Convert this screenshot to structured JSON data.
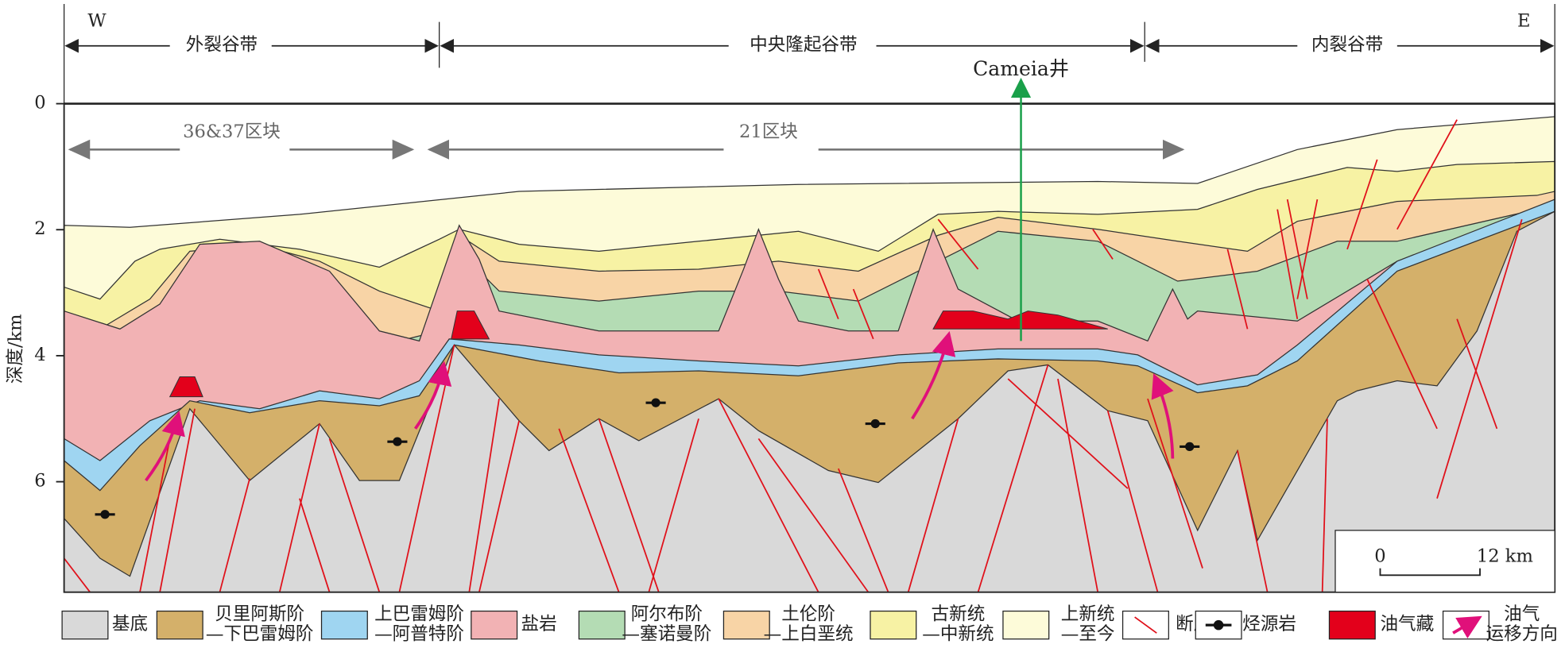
{
  "header": {
    "west": "W",
    "east": "E"
  },
  "zones": [
    "外裂谷带",
    "中央隆起谷带",
    "内裂谷带"
  ],
  "well": "Cameia井",
  "blocks": [
    "36&37区块",
    "21区块"
  ],
  "depth_axis": {
    "label": "深度/km",
    "ticks": [
      0,
      2,
      4,
      6
    ]
  },
  "scale_bar": {
    "start": "0",
    "end": "12 km"
  },
  "legend": [
    {
      "lines": [
        "基底"
      ]
    },
    {
      "lines": [
        "贝里阿斯阶",
        "—下巴雷姆阶"
      ]
    },
    {
      "lines": [
        "上巴雷姆阶",
        "—阿普特阶"
      ]
    },
    {
      "lines": [
        "盐岩"
      ]
    },
    {
      "lines": [
        "阿尔布阶",
        "—塞诺曼阶"
      ]
    },
    {
      "lines": [
        "土伦阶",
        "—上白垩统"
      ]
    },
    {
      "lines": [
        "古新统",
        "—中新统"
      ]
    },
    {
      "lines": [
        "上新统",
        "—至今"
      ]
    },
    {
      "lines": [
        "断层"
      ]
    },
    {
      "lines": [
        "烃源岩"
      ]
    },
    {
      "lines": [
        "油气藏"
      ]
    },
    {
      "lines": [
        "油气",
        "运移方向"
      ]
    }
  ]
}
